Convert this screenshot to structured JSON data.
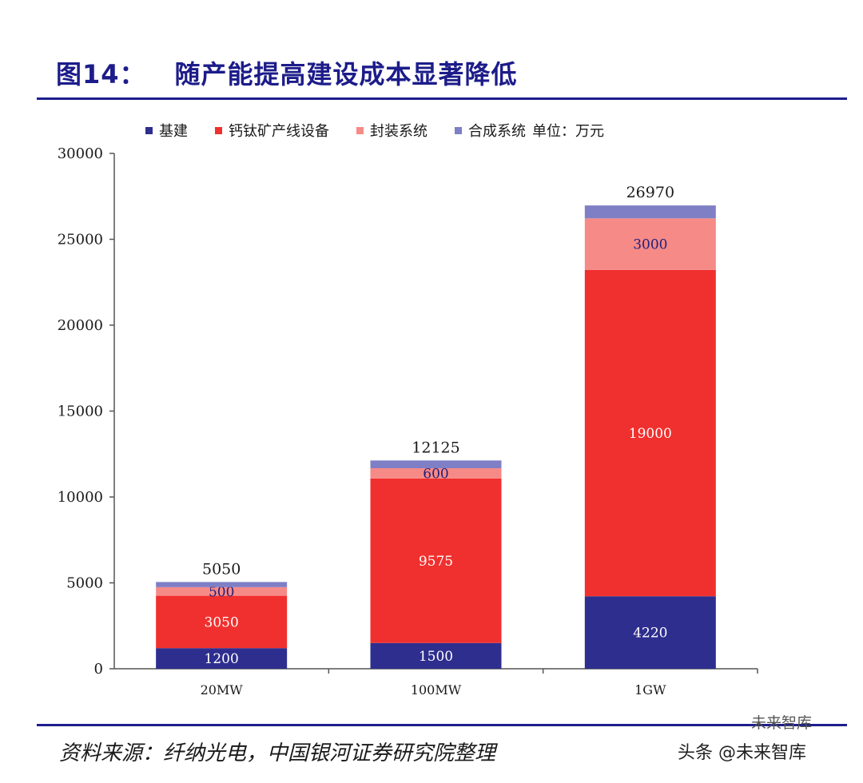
{
  "header": {
    "figure_label": "图14：",
    "title": "随产能提高建设成本显著降低"
  },
  "source": "资料来源：纤纳光电，中国银河证券研究院整理",
  "watermark": {
    "line1": "未来智库",
    "line2": "头条 @未来智库"
  },
  "chart_data": {
    "type": "bar",
    "stacked": true,
    "categories": [
      "20MW",
      "100MW",
      "1GW"
    ],
    "series": [
      {
        "name": "基建",
        "values": [
          1200,
          1500,
          4220
        ],
        "color": "#2e2e8f",
        "label_color": "#ffffff"
      },
      {
        "name": "钙钛矿产线设备",
        "values": [
          3050,
          9575,
          19000
        ],
        "color": "#f0302e",
        "label_color": "#ffffff"
      },
      {
        "name": "封装系统",
        "values": [
          500,
          600,
          3000
        ],
        "color": "#f68a87",
        "label_color": "#1f1f7a"
      },
      {
        "name": "合成系统",
        "values": [
          300,
          450,
          750
        ],
        "color": "#7f7fc6",
        "label_color": "#1f1f7a"
      }
    ],
    "totals": [
      5050,
      12125,
      26970
    ],
    "unit_label": "单位：万元",
    "ylim": [
      0,
      30000
    ],
    "yticks": [
      0,
      5000,
      10000,
      15000,
      20000,
      25000,
      30000
    ],
    "grid": false,
    "legend_position": "top"
  }
}
